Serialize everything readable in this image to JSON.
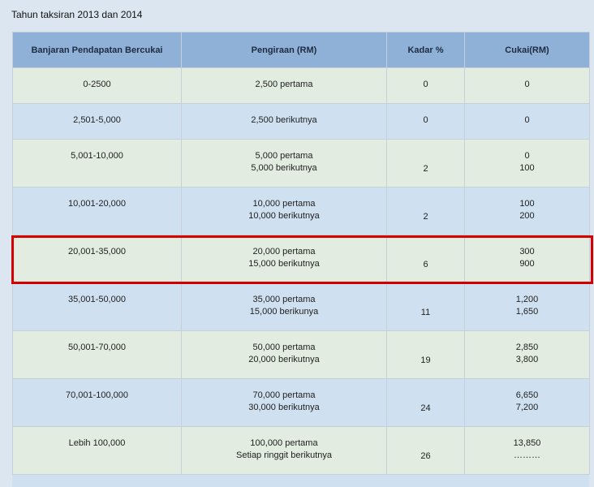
{
  "caption": "Tahun taksiran 2013 dan 2014",
  "table": {
    "headers": [
      "Banjaran Pendapatan Bercukai",
      "Pengiraan (RM)",
      "Kadar %",
      "Cukai(RM)"
    ],
    "rows": [
      {
        "band": "0-2500",
        "calc": [
          "2,500 pertama"
        ],
        "rate": "0",
        "tax": [
          "0"
        ]
      },
      {
        "band": "2,501-5,000",
        "calc": [
          "2,500 berikutnya"
        ],
        "rate": "0",
        "tax": [
          "0"
        ]
      },
      {
        "band": "5,001-10,000",
        "calc": [
          "5,000 pertama",
          "5,000 berikutnya"
        ],
        "rate": "2",
        "tax": [
          "0",
          "100"
        ]
      },
      {
        "band": "10,001-20,000",
        "calc": [
          "10,000 pertama",
          "10,000 berikutnya"
        ],
        "rate": "2",
        "tax": [
          "100",
          "200"
        ]
      },
      {
        "band": "20,001-35,000",
        "calc": [
          "20,000 pertama",
          "15,000 berikutnya"
        ],
        "rate": "6",
        "tax": [
          "300",
          "900"
        ]
      },
      {
        "band": "35,001-50,000",
        "calc": [
          "35,000 pertama",
          "15,000 berikunya"
        ],
        "rate": "11",
        "tax": [
          "1,200",
          "1,650"
        ]
      },
      {
        "band": "50,001-70,000",
        "calc": [
          "50,000 pertama",
          "20,000 berikutnya"
        ],
        "rate": "19",
        "tax": [
          "2,850",
          "3,800"
        ]
      },
      {
        "band": "70,001-100,000",
        "calc": [
          "70,000 pertama",
          "30,000 berikutnya"
        ],
        "rate": "24",
        "tax": [
          "6,650",
          "7,200"
        ]
      },
      {
        "band": "Lebih 100,000",
        "calc": [
          "100,000 pertama",
          "Setiap ringgit berikutnya"
        ],
        "rate": "26",
        "tax": [
          "13,850",
          "………"
        ]
      }
    ]
  },
  "colors": {
    "header_bg": "#8fb1d8",
    "row_green": "#e2ece0",
    "row_blue": "#cfe0f0",
    "highlight": "#d40000"
  }
}
